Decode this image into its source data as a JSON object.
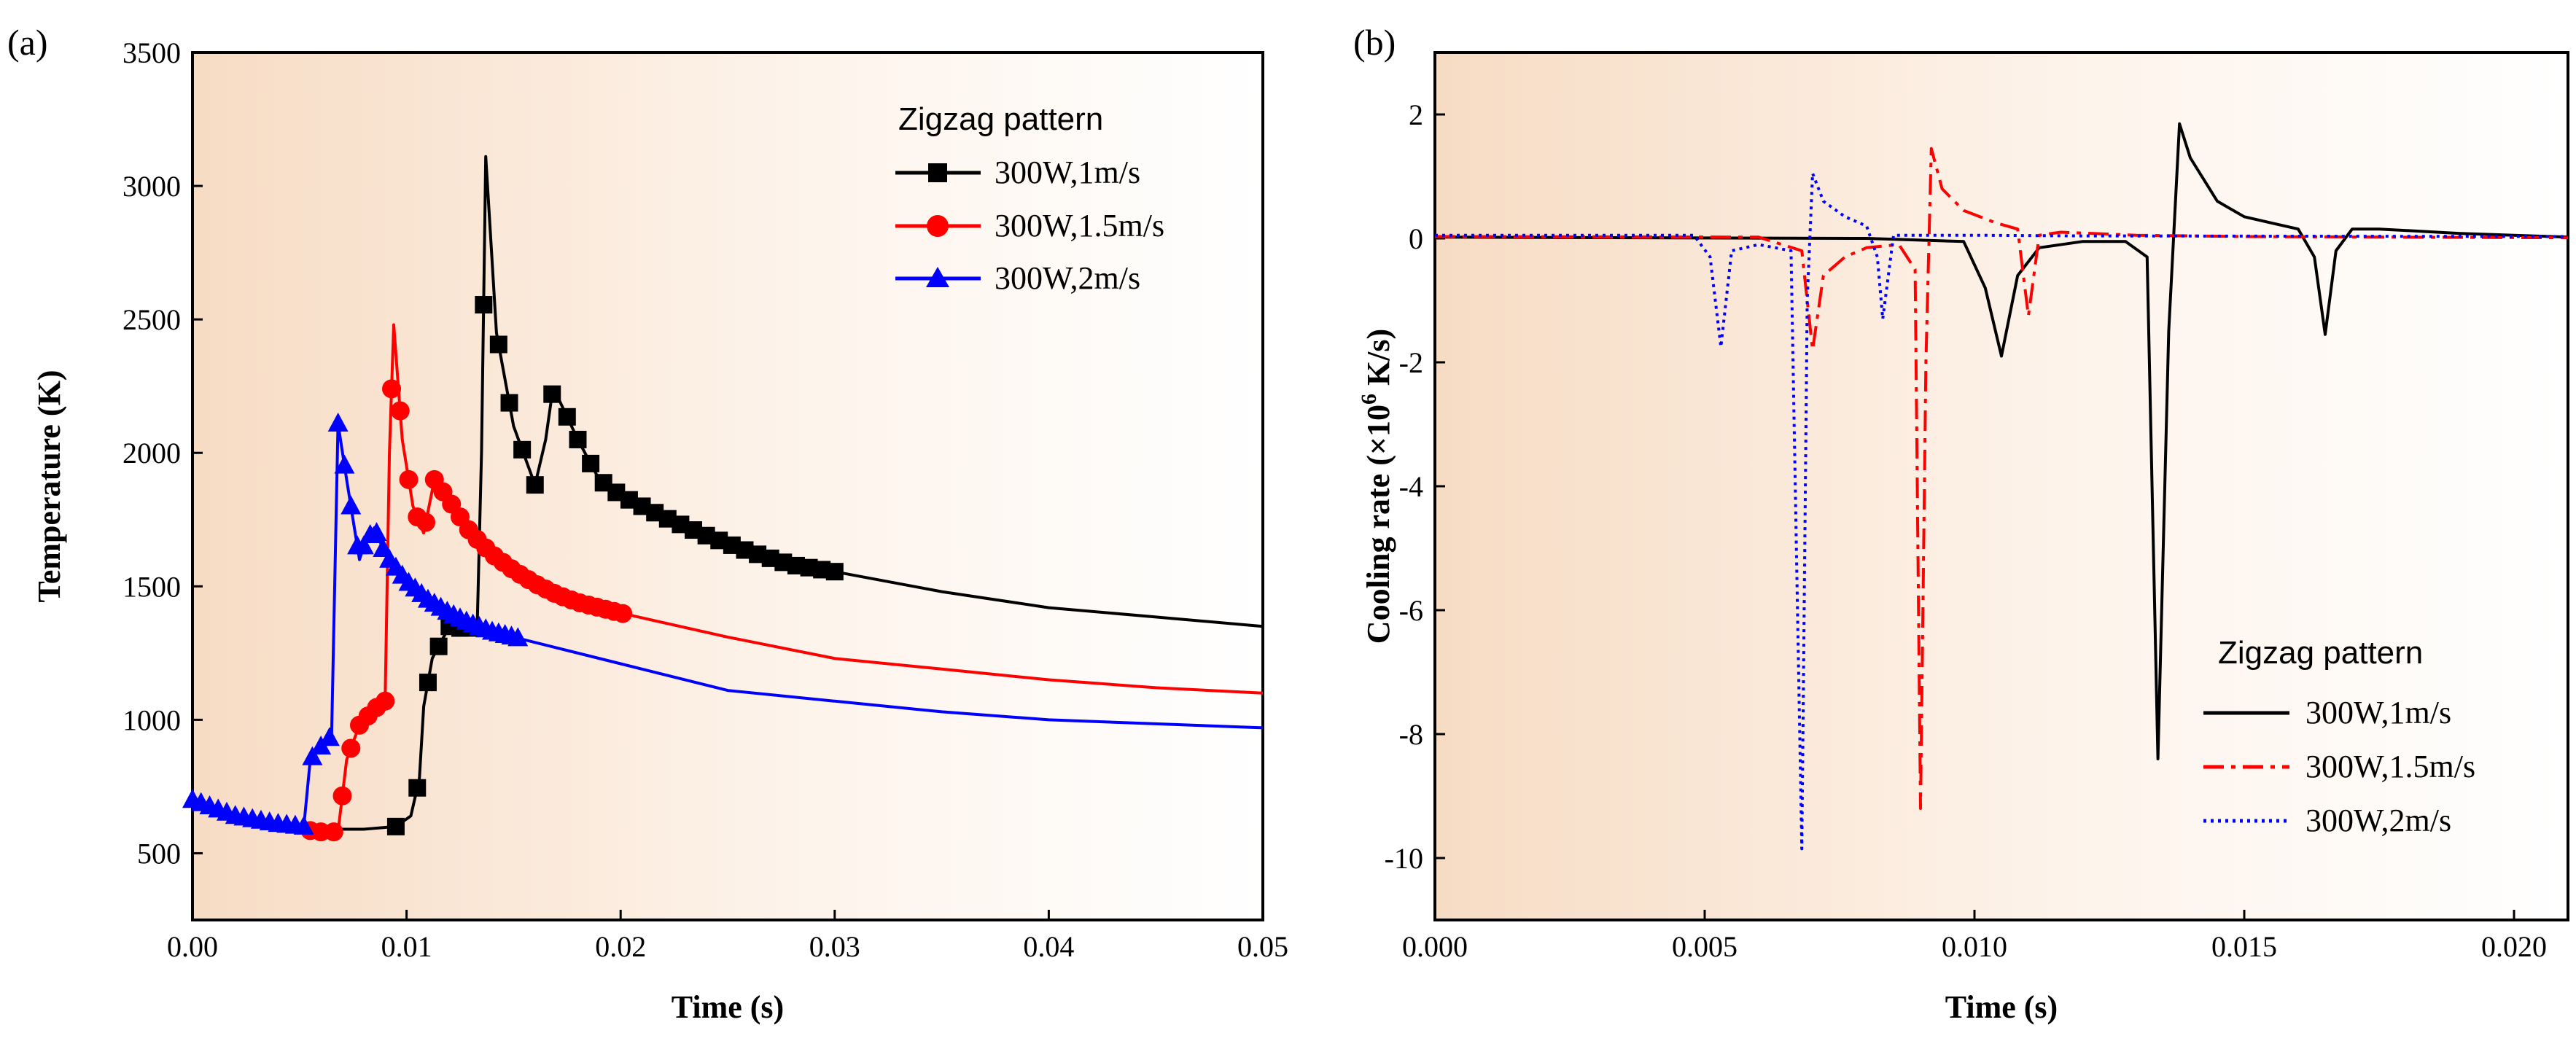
{
  "chart_data": [
    {
      "type": "line",
      "panel_label": "(a)",
      "xlabel": "Time (s)",
      "ylabel": "Temperature (K)",
      "xlim": [
        0,
        0.05
      ],
      "ylim": [
        250,
        3500
      ],
      "xticks": [
        0,
        0.01,
        0.02,
        0.03,
        0.04,
        0.05
      ],
      "xtick_labels": [
        "0.00",
        "0.01",
        "0.02",
        "0.03",
        "0.04",
        "0.05"
      ],
      "yticks": [
        500,
        1000,
        1500,
        2000,
        2500,
        3000,
        3500
      ],
      "ytick_labels": [
        "500",
        "1000",
        "1500",
        "2000",
        "2500",
        "3000",
        "3500"
      ],
      "legend": {
        "title": "Zigzag pattern",
        "position": "top-right"
      },
      "series": [
        {
          "name": "300W,1m/s",
          "color": "#000000",
          "marker": "square",
          "x": [
            0,
            0.002,
            0.004,
            0.006,
            0.008,
            0.0095,
            0.0102,
            0.0106,
            0.0108,
            0.0112,
            0.012,
            0.0128,
            0.0133,
            0.0135,
            0.0137,
            0.0142,
            0.015,
            0.016,
            0.0165,
            0.0168,
            0.017,
            0.018,
            0.019,
            0.02,
            0.022,
            0.024,
            0.026,
            0.028,
            0.03,
            0.035,
            0.04,
            0.045,
            0.05
          ],
          "y": [
            680,
            640,
            610,
            590,
            590,
            600,
            640,
            780,
            1050,
            1230,
            1350,
            1340,
            1350,
            2000,
            3110,
            2450,
            2100,
            1880,
            2050,
            2220,
            2220,
            2050,
            1900,
            1840,
            1760,
            1690,
            1630,
            1580,
            1555,
            1480,
            1420,
            1385,
            1350
          ],
          "marker_x": [
            0.0095,
            0.0105,
            0.011,
            0.0115,
            0.012,
            0.0125,
            0.013,
            0.0136,
            0.0143,
            0.0148,
            0.0154,
            0.016,
            0.0168,
            0.0175,
            0.018,
            0.0186,
            0.0192,
            0.0198,
            0.0204,
            0.021,
            0.0216,
            0.0222,
            0.0228,
            0.0234,
            0.024,
            0.0246,
            0.0252,
            0.0258,
            0.0264,
            0.027,
            0.0276,
            0.0282,
            0.0288,
            0.0294,
            0.03
          ]
        },
        {
          "name": "300W,1.5m/s",
          "color": "#ff0000",
          "marker": "circle",
          "x": [
            0,
            0.002,
            0.004,
            0.006,
            0.0068,
            0.0072,
            0.0078,
            0.0085,
            0.009,
            0.0092,
            0.0094,
            0.0098,
            0.0103,
            0.0108,
            0.0113,
            0.012,
            0.013,
            0.014,
            0.015,
            0.016,
            0.017,
            0.018,
            0.019,
            0.02,
            0.025,
            0.03,
            0.035,
            0.04,
            0.045,
            0.05
          ],
          "y": [
            680,
            630,
            600,
            580,
            580,
            850,
            980,
            1040,
            1070,
            2000,
            2480,
            2050,
            1800,
            1700,
            1900,
            1820,
            1700,
            1620,
            1560,
            1510,
            1470,
            1440,
            1420,
            1400,
            1310,
            1230,
            1190,
            1150,
            1120,
            1100
          ],
          "marker_x": [
            0.0055,
            0.006,
            0.0066,
            0.007,
            0.0074,
            0.0078,
            0.0082,
            0.0086,
            0.009,
            0.0093,
            0.0097,
            0.0101,
            0.0105,
            0.0109,
            0.0113,
            0.0117,
            0.0121,
            0.0125,
            0.0129,
            0.0133,
            0.0137,
            0.0141,
            0.0145,
            0.0149,
            0.0153,
            0.0157,
            0.0161,
            0.0165,
            0.0169,
            0.0173,
            0.0177,
            0.0181,
            0.0185,
            0.0189,
            0.0193,
            0.0197,
            0.0201
          ]
        },
        {
          "name": "300W,2m/s",
          "color": "#0000ff",
          "marker": "triangle",
          "x": [
            0,
            0.002,
            0.004,
            0.0052,
            0.0055,
            0.006,
            0.0065,
            0.0068,
            0.0072,
            0.0075,
            0.0078,
            0.008,
            0.0085,
            0.009,
            0.01,
            0.011,
            0.012,
            0.013,
            0.014,
            0.015,
            0.02,
            0.025,
            0.03,
            0.035,
            0.04,
            0.045,
            0.05
          ],
          "y": [
            700,
            640,
            610,
            600,
            850,
            900,
            940,
            2110,
            1900,
            1750,
            1600,
            1650,
            1720,
            1620,
            1520,
            1450,
            1400,
            1360,
            1330,
            1310,
            1210,
            1110,
            1070,
            1030,
            1000,
            985,
            970
          ],
          "marker_x": [
            0,
            0.0004,
            0.0008,
            0.0012,
            0.0016,
            0.002,
            0.0024,
            0.0028,
            0.0032,
            0.0036,
            0.004,
            0.0044,
            0.0048,
            0.0052,
            0.0056,
            0.006,
            0.0064,
            0.0068,
            0.0071,
            0.0074,
            0.0077,
            0.008,
            0.0083,
            0.0086,
            0.0089,
            0.0092,
            0.0095,
            0.0098,
            0.0101,
            0.0104,
            0.0107,
            0.011,
            0.0113,
            0.0116,
            0.0119,
            0.0122,
            0.0125,
            0.0128,
            0.0131,
            0.0134,
            0.0137,
            0.014,
            0.0143,
            0.0146,
            0.0149,
            0.0152
          ]
        }
      ]
    },
    {
      "type": "line",
      "panel_label": "(b)",
      "xlabel": "Time (s)",
      "ylabel_parts": [
        "Cooling rate (×10",
        "6",
        " K/s)"
      ],
      "xlim": [
        0,
        0.021
      ],
      "ylim": [
        -11,
        3
      ],
      "xticks": [
        0,
        0.005,
        0.01,
        0.015,
        0.02
      ],
      "xtick_labels": [
        "0.000",
        "0.005",
        "0.010",
        "0.015",
        "0.020"
      ],
      "yticks": [
        -10,
        -8,
        -6,
        -4,
        -2,
        0,
        2
      ],
      "ytick_labels": [
        "-10",
        "-8",
        "-6",
        "-4",
        "-2",
        "0",
        "2"
      ],
      "legend": {
        "title": "Zigzag pattern",
        "position": "bottom-right"
      },
      "series": [
        {
          "name": "300W,1m/s",
          "color": "#000000",
          "dash": "solid",
          "x": [
            0,
            0.008,
            0.0098,
            0.0102,
            0.0105,
            0.0108,
            0.0112,
            0.012,
            0.0128,
            0.0132,
            0.0134,
            0.0136,
            0.0138,
            0.014,
            0.0145,
            0.015,
            0.0155,
            0.016,
            0.0163,
            0.0165,
            0.0167,
            0.017,
            0.0175,
            0.019,
            0.021
          ],
          "y": [
            0.02,
            0,
            -0.05,
            -0.8,
            -1.9,
            -0.6,
            -0.15,
            -0.05,
            -0.05,
            -0.3,
            -8.4,
            -1.5,
            1.85,
            1.3,
            0.6,
            0.35,
            0.25,
            0.15,
            -0.3,
            -1.55,
            -0.2,
            0.15,
            0.15,
            0.08,
            0.02
          ]
        },
        {
          "name": "300W,1.5m/s",
          "color": "#ff0000",
          "dash": "dashdot",
          "x": [
            0,
            0.006,
            0.0068,
            0.007,
            0.0072,
            0.0076,
            0.008,
            0.0086,
            0.0089,
            0.009,
            0.0091,
            0.0092,
            0.0094,
            0.0098,
            0.0104,
            0.0108,
            0.011,
            0.0112,
            0.0116,
            0.013,
            0.015,
            0.021
          ],
          "y": [
            0.03,
            0.02,
            -0.2,
            -1.8,
            -0.6,
            -0.3,
            -0.15,
            -0.1,
            -0.5,
            -9.2,
            -2,
            1.45,
            0.8,
            0.45,
            0.25,
            0.15,
            -1.25,
            0.05,
            0.1,
            0.05,
            0.03,
            0.01
          ]
        },
        {
          "name": "300W,2m/s",
          "color": "#0000ff",
          "dash": "dotted",
          "x": [
            0,
            0.0048,
            0.0051,
            0.0053,
            0.0055,
            0.006,
            0.0066,
            0.0068,
            0.0069,
            0.007,
            0.0072,
            0.0076,
            0.008,
            0.0082,
            0.0083,
            0.0085,
            0.009,
            0.01,
            0.012,
            0.021
          ],
          "y": [
            0.05,
            0.05,
            -0.3,
            -1.75,
            -0.2,
            -0.1,
            -0.2,
            -9.85,
            -1,
            1.05,
            0.6,
            0.35,
            0.2,
            -0.3,
            -1.3,
            0.05,
            0.05,
            0.05,
            0.04,
            0.03
          ]
        }
      ]
    }
  ]
}
